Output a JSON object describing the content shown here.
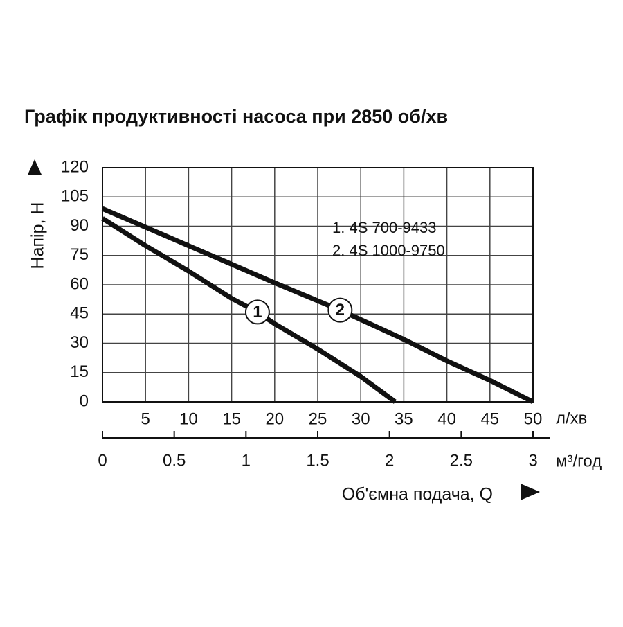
{
  "chart_data": {
    "type": "line",
    "title": "Графік продуктивності насоса при 2850 об/хв",
    "y_label": "Напір, Н",
    "x_label": "Об'ємна подача, Q",
    "x_unit": "л/хв",
    "x2_unit": "м³/год",
    "xlim": [
      0,
      50
    ],
    "xticks": [
      5,
      10,
      15,
      20,
      25,
      30,
      35,
      40,
      45,
      50
    ],
    "x2lim": [
      0,
      3
    ],
    "x2ticks": [
      0,
      0.5,
      1,
      1.5,
      2,
      2.5,
      3
    ],
    "ylim": [
      0,
      120
    ],
    "yticks": [
      0,
      15,
      30,
      45,
      60,
      75,
      90,
      105,
      120
    ],
    "grid": true,
    "series": [
      {
        "name": "1. 4S 700-9433",
        "label": "1",
        "color": "#111111",
        "x": [
          0,
          5,
          10,
          15,
          18,
          20,
          25,
          30,
          34
        ],
        "values": [
          94,
          80,
          67,
          53,
          46,
          40,
          27,
          13,
          0
        ]
      },
      {
        "name": "2. 4S 1000-9750",
        "label": "2",
        "color": "#111111",
        "x": [
          0,
          10,
          20,
          27.6,
          35,
          40,
          45,
          50
        ],
        "values": [
          99,
          80,
          61,
          47,
          32,
          21,
          11,
          0
        ]
      }
    ]
  }
}
